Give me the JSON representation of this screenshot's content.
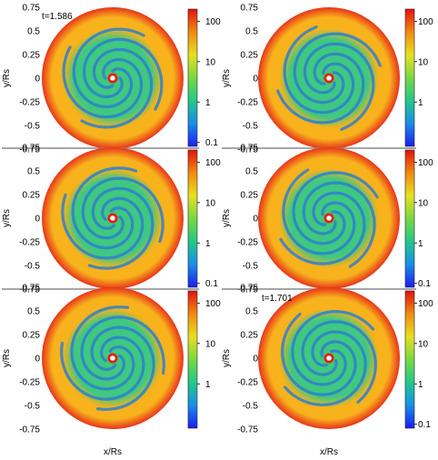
{
  "figure": {
    "x_label": "x/Rs",
    "y_label": "y/Rs",
    "colormap": [
      "#1c1cf0",
      "#1a8ee8",
      "#22c88a",
      "#78d840",
      "#e8e020",
      "#f08a10",
      "#e41010"
    ],
    "disk_colors": {
      "outer": "#e8341a",
      "mid": "#f7b21c",
      "inner": "#3fc880",
      "arm": "#2d7fcf",
      "hole_ring": "#e81e10",
      "hole_center": "#ffffff"
    }
  },
  "chart_data": [
    {
      "type": "heatmap",
      "panel": "top-left",
      "time_label": "t=1.586",
      "yticks": [
        "0.75",
        "0.5",
        "0.25",
        "0",
        "-0.25",
        "-0.5",
        "-0.75"
      ],
      "colorbar_ticks": [
        "100",
        "10",
        "1",
        "0.1"
      ],
      "colorbar_values": [
        100,
        10,
        1,
        0.1
      ],
      "colorbar_scale": "log"
    },
    {
      "type": "heatmap",
      "panel": "top-right",
      "time_label": "",
      "yticks": [
        "0.75",
        "0.5",
        "0.25",
        "0",
        "-0.25",
        "-0.5",
        "-0.75"
      ],
      "colorbar_ticks": [
        "100",
        "10",
        "1"
      ],
      "colorbar_values": [
        100,
        10,
        1
      ],
      "colorbar_scale": "log"
    },
    {
      "type": "heatmap",
      "panel": "middle-left",
      "time_label": "",
      "yticks": [
        "0.75",
        "0.5",
        "0.25",
        "0",
        "-0.25",
        "-0.5",
        "-0.75"
      ],
      "colorbar_ticks": [
        "100",
        "10",
        "1",
        "0.1"
      ],
      "colorbar_values": [
        100,
        10,
        1,
        0.1
      ],
      "colorbar_scale": "log"
    },
    {
      "type": "heatmap",
      "panel": "middle-right",
      "time_label": "",
      "yticks": [
        "0.75",
        "0.5",
        "0.25",
        "0",
        "-0.25",
        "-0.5",
        "-0.75"
      ],
      "colorbar_ticks": [
        "100",
        "10",
        "1",
        "0.1"
      ],
      "colorbar_values": [
        100,
        10,
        1,
        0.1
      ],
      "colorbar_scale": "log"
    },
    {
      "type": "heatmap",
      "panel": "bottom-left",
      "time_label": "",
      "yticks": [
        "0.75",
        "0.5",
        "0.25",
        "0",
        "-0.25",
        "-0.5",
        "-0.75"
      ],
      "colorbar_ticks": [
        "100",
        "10",
        "1"
      ],
      "colorbar_values": [
        100,
        10,
        1
      ],
      "colorbar_scale": "log"
    },
    {
      "type": "heatmap",
      "panel": "bottom-right",
      "time_label": "t=1.701",
      "yticks": [
        "0.75",
        "0.5",
        "0.25",
        "0",
        "-0.25",
        "-0.5",
        "-0.75"
      ],
      "colorbar_ticks": [
        "100",
        "10",
        "1",
        "0.1"
      ],
      "colorbar_values": [
        100,
        10,
        1,
        0.1
      ],
      "colorbar_scale": "log"
    }
  ]
}
